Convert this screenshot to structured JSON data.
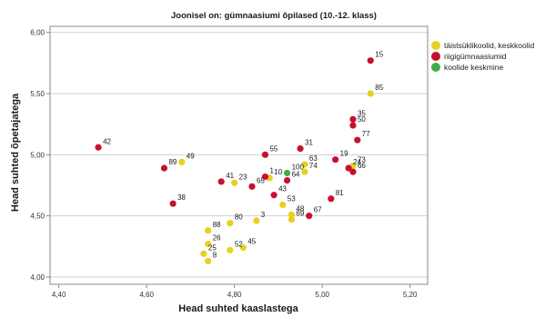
{
  "chart_data": {
    "type": "scatter",
    "title": "Joonisel on: gümnaasiumi õpilased (10.-12. klass)",
    "xlabel": "Head suhted kaaslastega",
    "ylabel": "Head suhted õpetajatega",
    "xlim": [
      4.38,
      5.24
    ],
    "ylim": [
      3.94,
      6.05
    ],
    "xticks": [
      "4,40",
      "4,60",
      "4,80",
      "5,00",
      "5,20"
    ],
    "yticks": [
      "4,00",
      "4,50",
      "5,00",
      "5,50",
      "6,00"
    ],
    "grid": "horizontal",
    "legend_position": "top-right",
    "series": [
      {
        "name": "täistsüklikoolid, keskkoolid",
        "color": "#e6d21e",
        "points": [
          {
            "label": "85",
            "x": 5.11,
            "y": 5.5
          },
          {
            "label": "63",
            "x": 4.96,
            "y": 4.92
          },
          {
            "label": "73",
            "x": 5.07,
            "y": 4.91
          },
          {
            "label": "10",
            "x": 4.88,
            "y": 4.81
          },
          {
            "label": "74",
            "x": 4.96,
            "y": 4.86
          },
          {
            "label": "23",
            "x": 4.8,
            "y": 4.77
          },
          {
            "label": "49",
            "x": 4.68,
            "y": 4.94
          },
          {
            "label": "53",
            "x": 4.91,
            "y": 4.59
          },
          {
            "label": "48",
            "x": 4.93,
            "y": 4.51
          },
          {
            "label": "69",
            "x": 4.93,
            "y": 4.47
          },
          {
            "label": "3",
            "x": 4.85,
            "y": 4.46
          },
          {
            "label": "80",
            "x": 4.79,
            "y": 4.44
          },
          {
            "label": "88",
            "x": 4.74,
            "y": 4.38
          },
          {
            "label": "26",
            "x": 4.74,
            "y": 4.27
          },
          {
            "label": "52",
            "x": 4.79,
            "y": 4.22
          },
          {
            "label": "45",
            "x": 4.82,
            "y": 4.24
          },
          {
            "label": "25",
            "x": 4.73,
            "y": 4.19
          },
          {
            "label": "8",
            "x": 4.74,
            "y": 4.13
          }
        ]
      },
      {
        "name": "riigigümnaasiumid",
        "color": "#c8102e",
        "points": [
          {
            "label": "15",
            "x": 5.11,
            "y": 5.77
          },
          {
            "label": "35",
            "x": 5.07,
            "y": 5.29
          },
          {
            "label": "50",
            "x": 5.07,
            "y": 5.24
          },
          {
            "label": "77",
            "x": 5.08,
            "y": 5.12
          },
          {
            "label": "42",
            "x": 4.49,
            "y": 5.06
          },
          {
            "label": "55",
            "x": 4.87,
            "y": 5.0
          },
          {
            "label": "31",
            "x": 4.95,
            "y": 5.05
          },
          {
            "label": "19",
            "x": 5.03,
            "y": 4.96
          },
          {
            "label": "89",
            "x": 4.64,
            "y": 4.89
          },
          {
            "label": "24",
            "x": 5.06,
            "y": 4.89
          },
          {
            "label": "66",
            "x": 5.07,
            "y": 4.86
          },
          {
            "label": "1",
            "x": 4.87,
            "y": 4.82
          },
          {
            "label": "64",
            "x": 4.92,
            "y": 4.79
          },
          {
            "label": "41",
            "x": 4.77,
            "y": 4.78
          },
          {
            "label": "65",
            "x": 4.84,
            "y": 4.74
          },
          {
            "label": "43",
            "x": 4.89,
            "y": 4.67
          },
          {
            "label": "81",
            "x": 5.02,
            "y": 4.64
          },
          {
            "label": "38",
            "x": 4.66,
            "y": 4.6
          },
          {
            "label": "67",
            "x": 4.97,
            "y": 4.5
          }
        ]
      },
      {
        "name": "koolide keskmine",
        "color": "#3cb043",
        "points": [
          {
            "label": "100",
            "x": 4.92,
            "y": 4.85
          }
        ]
      }
    ]
  }
}
